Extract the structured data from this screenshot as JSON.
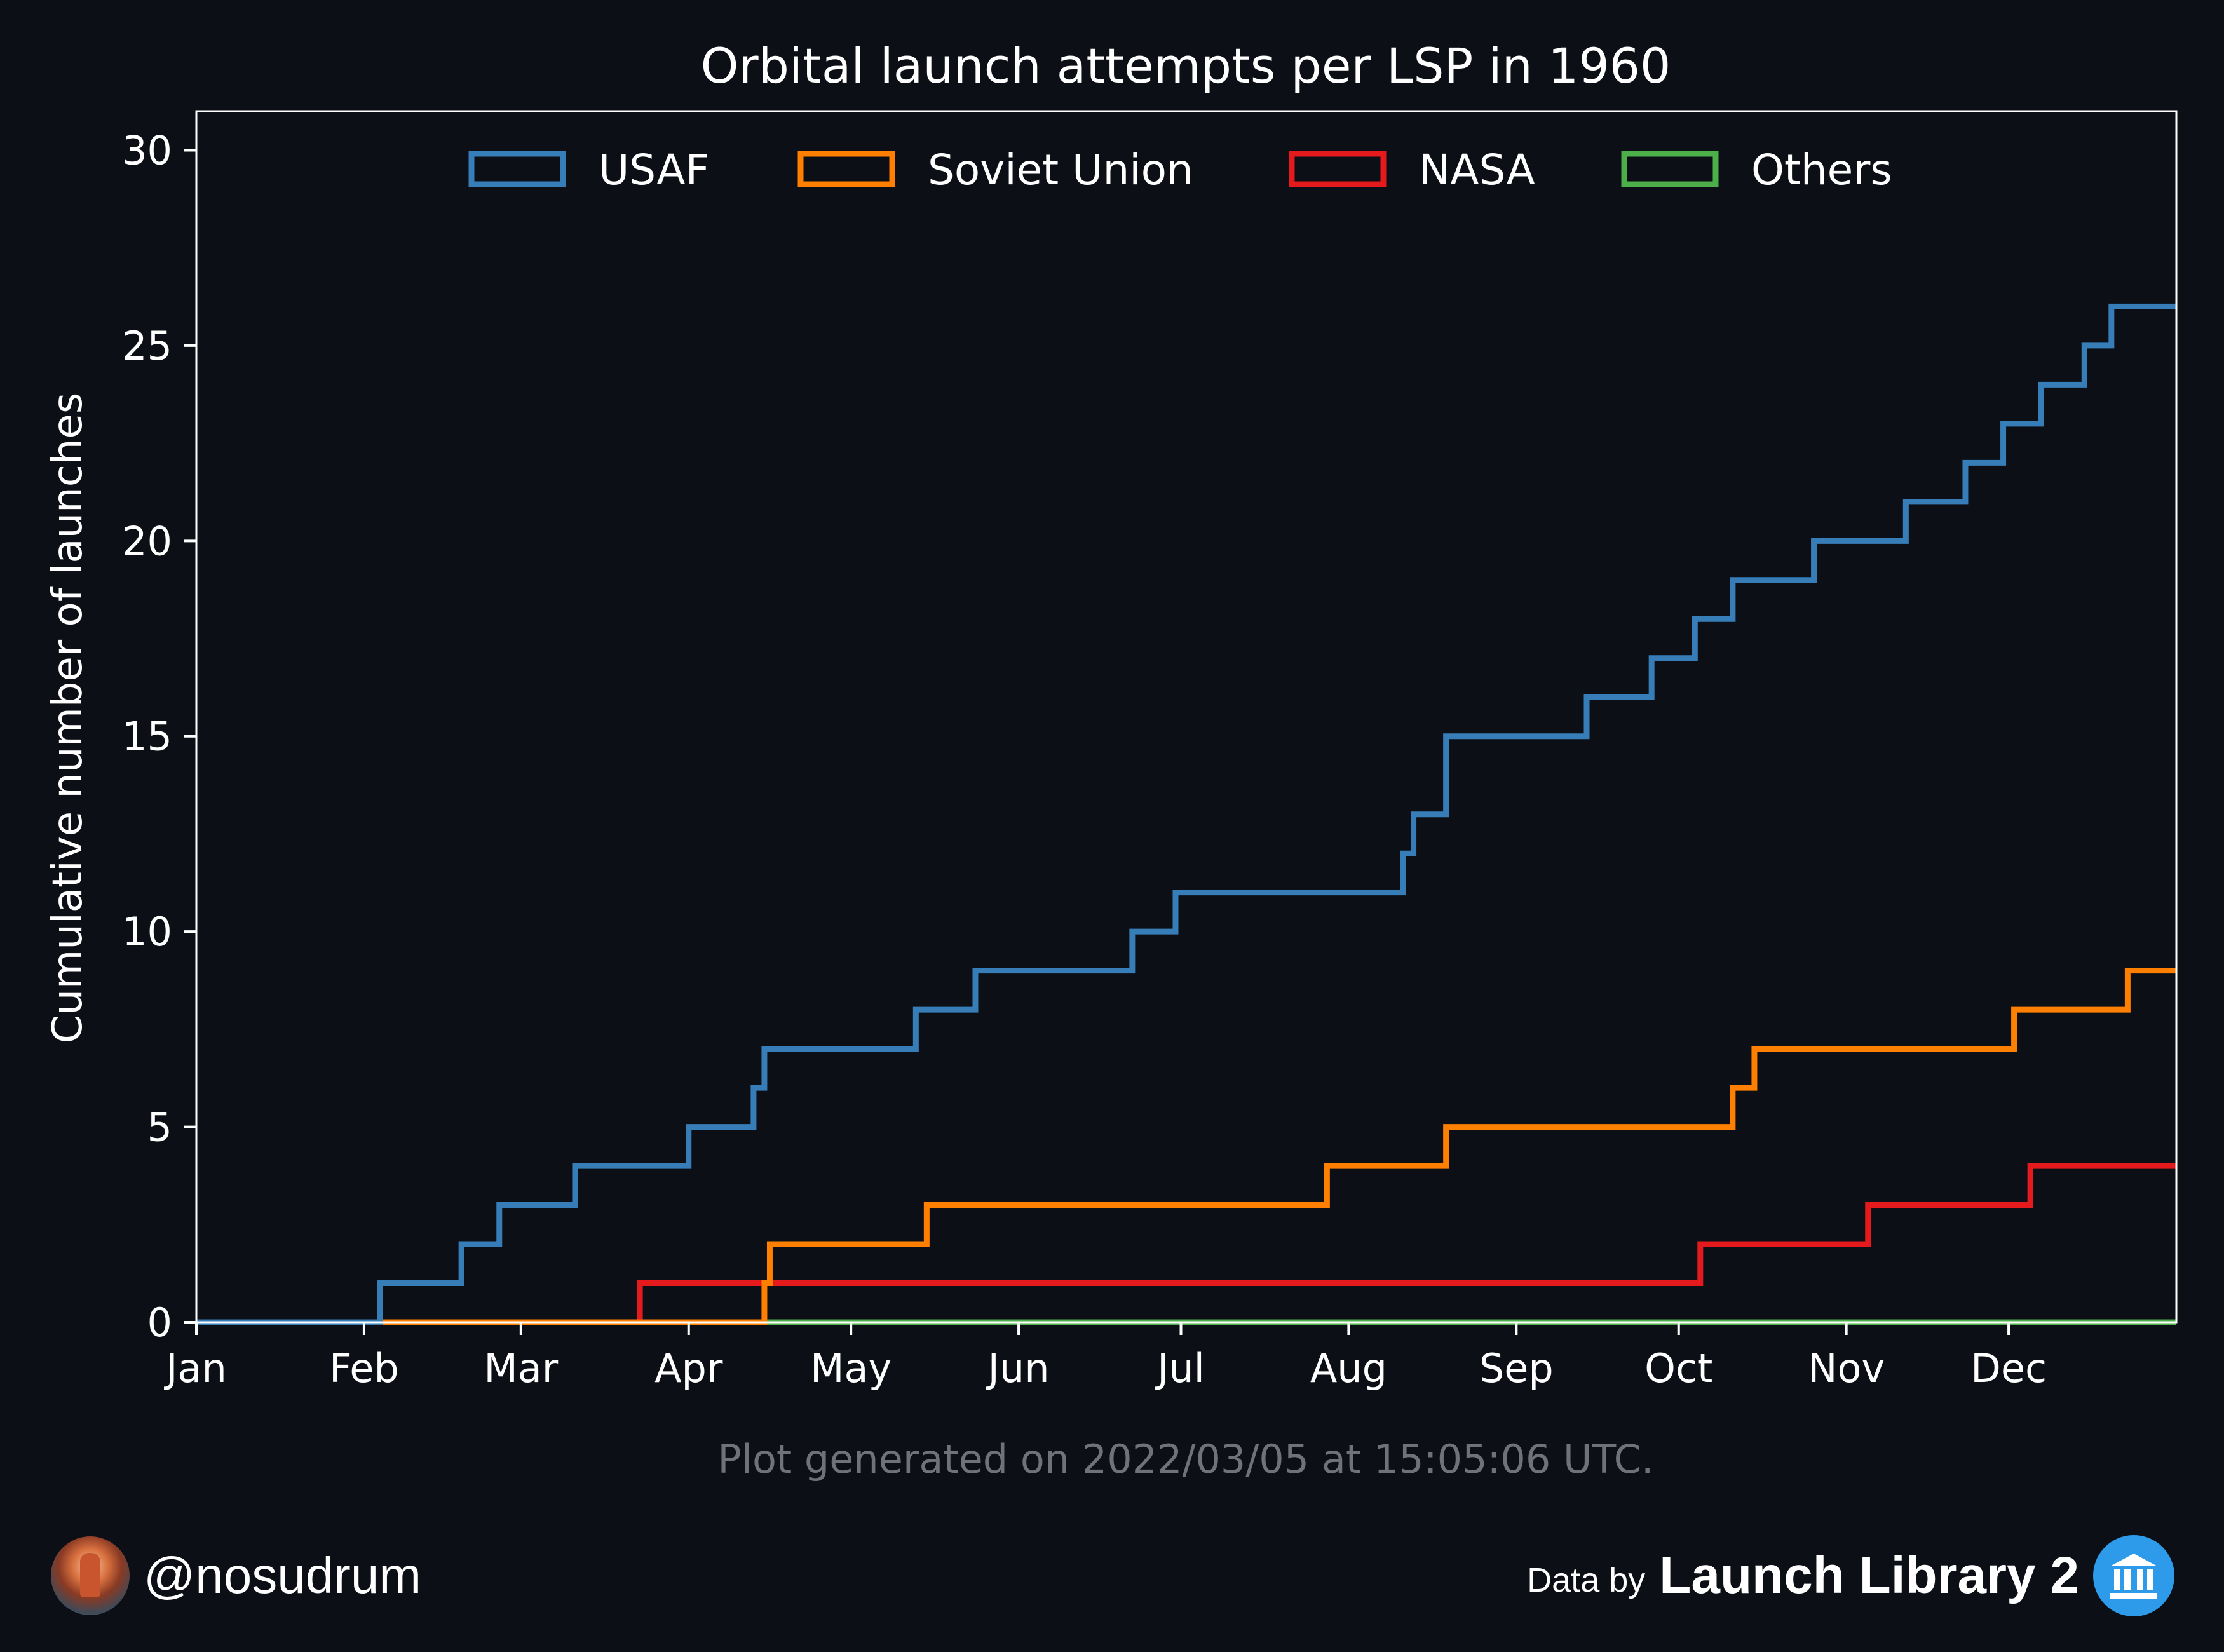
{
  "chart_data": {
    "type": "line",
    "step": true,
    "title": "Orbital launch attempts per LSP in 1960",
    "xlabel": "",
    "ylabel": "Cumulative number of launches",
    "ylim": [
      0,
      31
    ],
    "xlim": [
      0,
      366
    ],
    "yticks": [
      0,
      5,
      10,
      15,
      20,
      25,
      30
    ],
    "xticks": [
      {
        "label": "Jan",
        "day": 0
      },
      {
        "label": "Feb",
        "day": 31
      },
      {
        "label": "Mar",
        "day": 60
      },
      {
        "label": "Apr",
        "day": 91
      },
      {
        "label": "May",
        "day": 121
      },
      {
        "label": "Jun",
        "day": 152
      },
      {
        "label": "Jul",
        "day": 182
      },
      {
        "label": "Aug",
        "day": 213
      },
      {
        "label": "Sep",
        "day": 244
      },
      {
        "label": "Oct",
        "day": 274
      },
      {
        "label": "Nov",
        "day": 305
      },
      {
        "label": "Dec",
        "day": 335
      }
    ],
    "legend": "top-center",
    "grid": false,
    "series": [
      {
        "name": "USAF",
        "color": "#377eb8",
        "steps": [
          [
            0,
            0
          ],
          [
            34,
            1
          ],
          [
            49,
            2
          ],
          [
            56,
            3
          ],
          [
            70,
            4
          ],
          [
            91,
            5
          ],
          [
            103,
            6
          ],
          [
            105,
            7
          ],
          [
            133,
            8
          ],
          [
            144,
            9
          ],
          [
            173,
            10
          ],
          [
            181,
            11
          ],
          [
            223,
            12
          ],
          [
            225,
            13
          ],
          [
            231,
            15
          ],
          [
            257,
            16
          ],
          [
            269,
            17
          ],
          [
            277,
            18
          ],
          [
            284,
            19
          ],
          [
            299,
            20
          ],
          [
            316,
            21
          ],
          [
            327,
            22
          ],
          [
            334,
            23
          ],
          [
            341,
            24
          ],
          [
            349,
            25
          ],
          [
            354,
            26
          ],
          [
            366,
            26
          ]
        ]
      },
      {
        "name": "Soviet Union",
        "color": "#ff7f00",
        "steps": [
          [
            0,
            0
          ],
          [
            105,
            1
          ],
          [
            106,
            2
          ],
          [
            135,
            3
          ],
          [
            209,
            4
          ],
          [
            231,
            5
          ],
          [
            284,
            6
          ],
          [
            288,
            7
          ],
          [
            336,
            8
          ],
          [
            357,
            9
          ],
          [
            366,
            9
          ]
        ]
      },
      {
        "name": "NASA",
        "color": "#e41a1c",
        "steps": [
          [
            0,
            0
          ],
          [
            82,
            1
          ],
          [
            278,
            2
          ],
          [
            309,
            3
          ],
          [
            339,
            4
          ],
          [
            366,
            4
          ]
        ]
      },
      {
        "name": "Others",
        "color": "#4daf4a",
        "steps": [
          [
            0,
            0
          ],
          [
            366,
            0
          ]
        ]
      }
    ]
  },
  "footer": {
    "generated": "Plot generated on 2022/03/05 at 15:05:06 UTC.",
    "handle": "@nosudrum",
    "data_by": "Data by",
    "source": "Launch Library 2"
  }
}
